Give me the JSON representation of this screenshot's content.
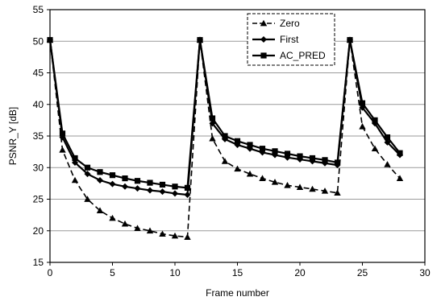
{
  "chart_data": {
    "type": "line",
    "xlabel": "Frame number",
    "ylabel": "PSNR_Y [dB]",
    "xlim": [
      0,
      30
    ],
    "ylim": [
      15,
      55
    ],
    "xticks": [
      0,
      5,
      10,
      15,
      20,
      25,
      30
    ],
    "yticks": [
      15,
      20,
      25,
      30,
      35,
      40,
      45,
      50,
      55
    ],
    "grid": true,
    "legend_position": "top-right",
    "series": [
      {
        "name": "Zero",
        "marker": "triangle",
        "line_style": "dashed",
        "x": [
          0,
          1,
          2,
          3,
          4,
          5,
          6,
          7,
          8,
          9,
          10,
          11,
          12,
          13,
          14,
          15,
          16,
          17,
          18,
          19,
          20,
          21,
          22,
          23,
          24,
          25,
          26,
          27,
          28
        ],
        "y": [
          50.2,
          32.8,
          28.0,
          25.0,
          23.2,
          22.0,
          21.1,
          20.4,
          20.0,
          19.5,
          19.2,
          19.0,
          50.2,
          34.6,
          31.0,
          29.8,
          29.0,
          28.3,
          27.7,
          27.2,
          26.9,
          26.6,
          26.3,
          26.0,
          50.2,
          36.5,
          33.0,
          30.5,
          28.3
        ]
      },
      {
        "name": "First",
        "marker": "diamond",
        "line_style": "solid",
        "x": [
          0,
          1,
          2,
          3,
          4,
          5,
          6,
          7,
          8,
          9,
          10,
          11,
          12,
          13,
          14,
          15,
          16,
          17,
          18,
          19,
          20,
          21,
          22,
          23,
          24,
          25,
          26,
          27,
          28
        ],
        "y": [
          50.2,
          34.8,
          30.8,
          29.0,
          28.0,
          27.4,
          27.0,
          26.7,
          26.4,
          26.2,
          25.9,
          25.7,
          50.2,
          37.0,
          34.5,
          33.6,
          33.0,
          32.4,
          32.0,
          31.6,
          31.3,
          31.0,
          30.7,
          30.4,
          50.2,
          39.5,
          37.0,
          34.0,
          32.0
        ]
      },
      {
        "name": "AC_PRED",
        "marker": "square",
        "line_style": "solid",
        "x": [
          0,
          1,
          2,
          3,
          4,
          5,
          6,
          7,
          8,
          9,
          10,
          11,
          12,
          13,
          14,
          15,
          16,
          17,
          18,
          19,
          20,
          21,
          22,
          23,
          24,
          25,
          26,
          27,
          28
        ],
        "y": [
          50.2,
          35.4,
          31.5,
          30.0,
          29.3,
          28.8,
          28.3,
          27.9,
          27.6,
          27.3,
          27.0,
          26.8,
          50.2,
          37.8,
          35.0,
          34.2,
          33.6,
          33.0,
          32.6,
          32.2,
          31.8,
          31.5,
          31.2,
          30.8,
          50.2,
          40.2,
          37.5,
          34.8,
          32.3
        ]
      }
    ]
  }
}
